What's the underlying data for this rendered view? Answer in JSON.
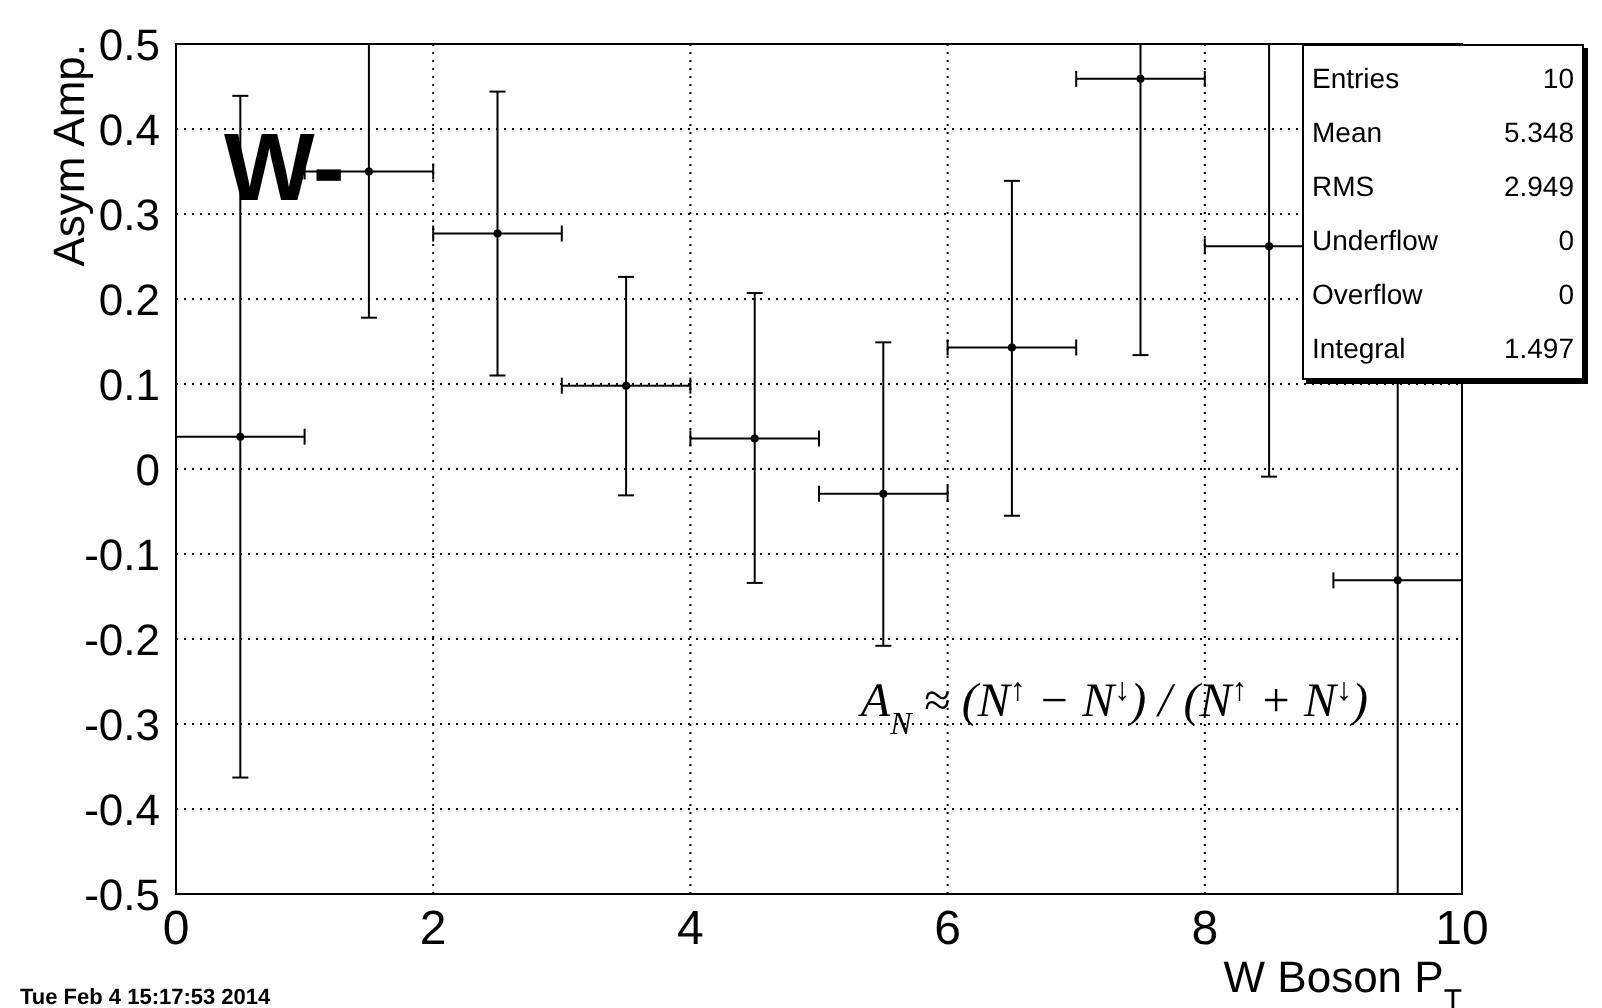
{
  "chart_data": {
    "type": "scatter",
    "xlabel": "W Boson P$_{T}$",
    "ylabel": "Asym Amp.",
    "x": [
      0.5,
      1.5,
      2.5,
      3.5,
      4.5,
      5.5,
      6.5,
      7.5,
      8.5,
      9.5
    ],
    "values": [
      0.038,
      0.35,
      0.277,
      0.098,
      0.036,
      -0.029,
      0.143,
      0.459,
      0.262,
      -0.131
    ],
    "errors": [
      [
        -0.363,
        0.439
      ],
      [
        0.178,
        0.5
      ],
      [
        0.11,
        0.444
      ],
      [
        -0.031,
        0.226
      ],
      [
        -0.134,
        0.207
      ],
      [
        -0.208,
        0.149
      ],
      [
        -0.055,
        0.339
      ],
      [
        0.134,
        0.5
      ],
      [
        -0.009,
        0.5
      ],
      [
        -0.5,
        0.5
      ]
    ],
    "xerrors": [
      0.5,
      0.5,
      0.5,
      0.5,
      0.5,
      0.5,
      0.5,
      0.5,
      0.5,
      0.5
    ],
    "color": "#000000",
    "grid": true,
    "legend": false,
    "xlim": [
      0,
      10
    ],
    "xticks": [
      0,
      2,
      4,
      6,
      8,
      10
    ],
    "ylim": [
      -0.5,
      0.5
    ],
    "yticks": [
      -0.5,
      -0.4,
      -0.3,
      -0.2,
      -0.1,
      0,
      0.1,
      0.2,
      0.3,
      0.4,
      0.5
    ],
    "annotations": [
      "W-",
      "A$_{N}$ ≈ (N$^{↑}$ − N$^{↓}$) / (N$^{↑}$ + N$^{↓}$)",
      "Entries 10",
      "Mean 5.348",
      "RMS 2.949",
      "Underflow 0",
      "Overflow 0",
      "Integral 1.497",
      "Tue Feb  4 15:17:53 2014"
    ]
  }
}
